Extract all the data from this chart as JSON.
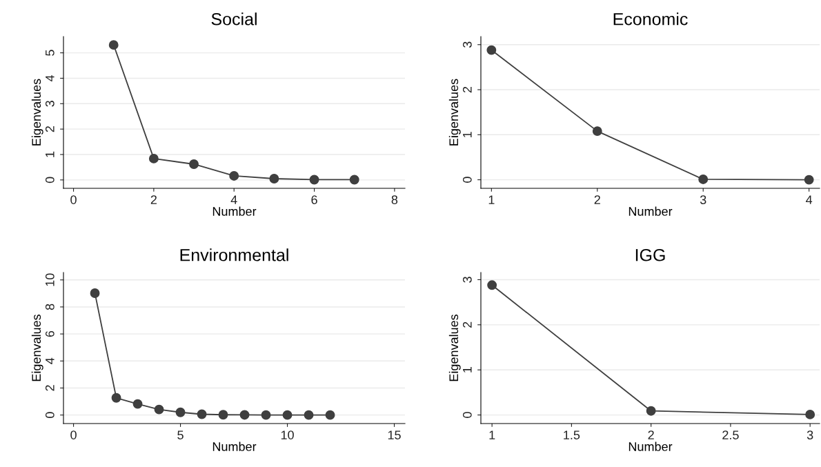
{
  "chart_data": [
    {
      "type": "line",
      "title": "Social",
      "xlabel": "Number",
      "ylabel": "Eigenvalues",
      "x": [
        1,
        2,
        3,
        4,
        5,
        6,
        7
      ],
      "series": [
        {
          "color": "#3f3f3f",
          "values": [
            5.31,
            0.84,
            0.62,
            0.16,
            0.05,
            0.01,
            0.01
          ]
        }
      ],
      "xlim": [
        -0.25,
        8.26
      ],
      "xticks": [
        0,
        2,
        4,
        6,
        8
      ],
      "ylim": [
        -0.33,
        5.64
      ],
      "yticks": [
        0,
        1,
        2,
        3,
        4,
        5
      ],
      "grid": "y",
      "marker": "circle",
      "line_style": "solid"
    },
    {
      "type": "line",
      "title": "Economic",
      "xlabel": "Number",
      "ylabel": "Eigenvalues",
      "x": [
        1,
        2,
        3,
        4
      ],
      "series": [
        {
          "color": "#3f3f3f",
          "values": [
            2.88,
            1.08,
            0.01,
            0.0
          ]
        }
      ],
      "xlim": [
        0.9,
        4.1
      ],
      "xticks": [
        1,
        2,
        3,
        4
      ],
      "ylim": [
        -0.19,
        3.18
      ],
      "yticks": [
        0,
        1,
        2,
        3
      ],
      "grid": "y",
      "marker": "circle",
      "line_style": "solid"
    },
    {
      "type": "line",
      "title": "Environmental",
      "xlabel": "Number",
      "ylabel": "Eigenvalues",
      "x": [
        1,
        2,
        3,
        4,
        5,
        6,
        7,
        8,
        9,
        10,
        11,
        12
      ],
      "series": [
        {
          "color": "#3f3f3f",
          "values": [
            9.02,
            1.27,
            0.82,
            0.41,
            0.2,
            0.06,
            0.02,
            0.01,
            0.0,
            0.0,
            0.0,
            0.0
          ]
        }
      ],
      "xlim": [
        -0.47,
        15.5
      ],
      "xticks": [
        0,
        5,
        10,
        15
      ],
      "ylim": [
        -0.63,
        10.55
      ],
      "yticks": [
        0,
        2,
        4,
        6,
        8,
        10
      ],
      "grid": "y",
      "marker": "circle",
      "line_style": "solid"
    },
    {
      "type": "line",
      "title": "IGG",
      "xlabel": "Number",
      "ylabel": "Eigenvalues",
      "x": [
        1,
        2,
        3
      ],
      "series": [
        {
          "color": "#3f3f3f",
          "values": [
            2.88,
            0.09,
            0.01
          ]
        }
      ],
      "xlim": [
        0.93,
        3.06
      ],
      "xticks": [
        1,
        1.5,
        2,
        2.5,
        3
      ],
      "ylim": [
        -0.19,
        3.16
      ],
      "yticks": [
        0,
        1,
        2,
        3
      ],
      "grid": "y",
      "marker": "circle",
      "line_style": "solid"
    }
  ]
}
